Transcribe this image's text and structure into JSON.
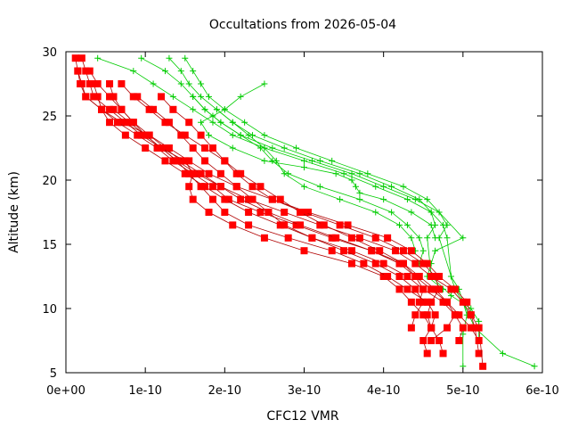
{
  "chart_data": {
    "type": "line",
    "title": "Occultations from 2026-05-04",
    "xlabel": "CFC12 VMR",
    "ylabel": "Altitude (km)",
    "xlim": [
      0,
      6e-10
    ],
    "ylim": [
      5,
      30
    ],
    "x_ticks": [
      {
        "v": 0,
        "label": "0e+00"
      },
      {
        "v": 1e-10,
        "label": "1e-10"
      },
      {
        "v": 2e-10,
        "label": "2e-10"
      },
      {
        "v": 3e-10,
        "label": "3e-10"
      },
      {
        "v": 4e-10,
        "label": "4e-10"
      },
      {
        "v": 5e-10,
        "label": "5e-10"
      },
      {
        "v": 6e-10,
        "label": "6e-10"
      }
    ],
    "y_ticks": [
      {
        "v": 5,
        "label": "5"
      },
      {
        "v": 10,
        "label": "10"
      },
      {
        "v": 15,
        "label": "15"
      },
      {
        "v": 20,
        "label": "20"
      },
      {
        "v": 25,
        "label": "25"
      },
      {
        "v": 30,
        "label": "30"
      }
    ],
    "grid": false,
    "legend": "none",
    "colors": {
      "red": "#ff0000",
      "green": "#00cc00",
      "red_line": "#b00000",
      "green_line": "#00cc00"
    },
    "series": [
      {
        "color": "red",
        "marker": "square",
        "x": [
          1.2e-11,
          1.5e-11,
          1.8e-11,
          2.5e-11,
          4.5e-11,
          7e-11,
          1.05e-10,
          1.3e-10,
          1.55e-10,
          1.8e-10,
          2.15e-10,
          2.6e-10,
          3.05e-10,
          3.55e-10,
          4.05e-10,
          4.35e-10,
          4.55e-10,
          4.7e-10,
          4.9e-10,
          5.05e-10,
          5.1e-10,
          5.15e-10,
          5.2e-10
        ],
        "y": [
          29.5,
          28.5,
          27.5,
          26.5,
          25.5,
          24.5,
          23.5,
          22.5,
          21.5,
          20.5,
          19.5,
          18.5,
          17.5,
          16.5,
          15.5,
          14.5,
          13.5,
          12.5,
          11.5,
          10.5,
          9.5,
          8.5,
          6.5
        ]
      },
      {
        "color": "red",
        "marker": "square",
        "x": [
          2e-11,
          2.5e-11,
          3e-11,
          3.5e-11,
          5.5e-11,
          7.5e-11,
          9.5e-11,
          1.2e-10,
          1.4e-10,
          1.65e-10,
          1.95e-10,
          2.3e-10,
          2.75e-10,
          3.2e-10,
          3.7e-10,
          4.15e-10,
          4.4e-10,
          4.6e-10,
          4.85e-10,
          5e-10,
          5.1e-10,
          5.2e-10,
          5.25e-10
        ],
        "y": [
          29.5,
          28.5,
          27.5,
          26.5,
          25.5,
          24.5,
          23.5,
          22.5,
          21.5,
          20.5,
          19.5,
          18.5,
          17.5,
          16.5,
          15.5,
          14.5,
          13.5,
          12.5,
          11.5,
          10.5,
          9.5,
          8.5,
          5.5
        ]
      },
      {
        "color": "red",
        "marker": "square",
        "x": [
          1.5e-11,
          2e-11,
          2.5e-11,
          4.5e-11,
          6.5e-11,
          9e-11,
          1.15e-10,
          1.35e-10,
          1.6e-10,
          1.85e-10,
          2.05e-10,
          2.45e-10,
          2.9e-10,
          3.35e-10,
          3.85e-10,
          4.25e-10,
          4.45e-10,
          4.65e-10,
          4.8e-10,
          4.95e-10,
          5.1e-10,
          5.2e-10
        ],
        "y": [
          28.5,
          27.5,
          26.5,
          25.5,
          24.5,
          23.5,
          22.5,
          21.5,
          20.5,
          19.5,
          18.5,
          17.5,
          16.5,
          15.5,
          14.5,
          13.5,
          12.5,
          11.5,
          10.5,
          9.5,
          8.5,
          7.5
        ]
      },
      {
        "color": "red",
        "marker": "square",
        "x": [
          3.5e-11,
          4e-11,
          4.5e-11,
          5.5e-11,
          7.5e-11,
          1e-10,
          1.25e-10,
          1.5e-10,
          1.75e-10,
          2e-10,
          2.3e-10,
          2.7e-10,
          3.1e-10,
          3.6e-10,
          4e-10,
          4.3e-10,
          4.5e-10,
          4.75e-10,
          4.9e-10,
          5e-10,
          4.95e-10
        ],
        "y": [
          27.5,
          26.5,
          25.5,
          24.5,
          23.5,
          22.5,
          21.5,
          20.5,
          19.5,
          18.5,
          17.5,
          16.5,
          15.5,
          14.5,
          13.5,
          12.5,
          11.5,
          10.5,
          9.5,
          8.5,
          7.5
        ]
      },
      {
        "color": "red",
        "marker": "square",
        "x": [
          5.5e-11,
          6e-11,
          7e-11,
          8.5e-11,
          1.05e-10,
          1.25e-10,
          1.45e-10,
          1.7e-10,
          1.95e-10,
          2.2e-10,
          2.55e-10,
          2.95e-10,
          3.4e-10,
          3.85e-10,
          4.2e-10,
          4.4e-10,
          4.6e-10,
          4.8e-10,
          4.9e-10,
          4.8e-10,
          4.6e-10
        ],
        "y": [
          27.5,
          26.5,
          25.5,
          24.5,
          23.5,
          22.5,
          21.5,
          20.5,
          19.5,
          18.5,
          17.5,
          16.5,
          15.5,
          14.5,
          13.5,
          12.5,
          11.5,
          10.5,
          9.5,
          8.5,
          7.5
        ]
      },
      {
        "color": "red",
        "marker": "square",
        "x": [
          7e-11,
          8.5e-11,
          1.05e-10,
          1.25e-10,
          1.5e-10,
          1.75e-10,
          2e-10,
          2.15e-10,
          2.35e-10,
          2.6e-10,
          3e-10,
          3.45e-10,
          3.9e-10,
          4.25e-10,
          4.5e-10,
          4.65e-10,
          4.7e-10,
          4.6e-10,
          4.55e-10,
          4.6e-10
        ],
        "y": [
          27.5,
          26.5,
          25.5,
          24.5,
          23.5,
          22.5,
          21.5,
          20.5,
          19.5,
          18.5,
          17.5,
          16.5,
          15.5,
          14.5,
          13.5,
          12.5,
          11.5,
          10.5,
          9.5,
          8.5
        ]
      },
      {
        "color": "red",
        "marker": "square",
        "x": [
          9e-11,
          1.1e-10,
          1.3e-10,
          1.45e-10,
          1.6e-10,
          1.75e-10,
          1.95e-10,
          2.15e-10,
          2.35e-10,
          2.55e-10,
          2.75e-10,
          3.1e-10,
          3.5e-10,
          3.9e-10,
          4.2e-10,
          4.4e-10,
          4.5e-10,
          4.4e-10,
          4.35e-10
        ],
        "y": [
          26.5,
          25.5,
          24.5,
          23.5,
          22.5,
          21.5,
          20.5,
          19.5,
          18.5,
          17.5,
          16.5,
          15.5,
          14.5,
          13.5,
          12.5,
          11.5,
          10.5,
          9.5,
          8.5
        ]
      },
      {
        "color": "red",
        "marker": "square",
        "x": [
          1.2e-10,
          1.35e-10,
          1.55e-10,
          1.7e-10,
          1.85e-10,
          2e-10,
          2.2e-10,
          2.45e-10,
          2.7e-10,
          2.95e-10,
          3.25e-10,
          3.6e-10,
          3.95e-10,
          4.25e-10,
          4.4e-10,
          4.5e-10,
          4.45e-10
        ],
        "y": [
          26.5,
          25.5,
          24.5,
          23.5,
          22.5,
          21.5,
          20.5,
          19.5,
          18.5,
          17.5,
          16.5,
          15.5,
          14.5,
          13.5,
          12.5,
          11.5,
          10.5
        ]
      },
      {
        "color": "red",
        "marker": "square",
        "x": [
          3e-11,
          4e-11,
          5.5e-11,
          7e-11,
          8.5e-11,
          1e-10,
          1.2e-10,
          1.5e-10,
          1.6e-10,
          1.55e-10,
          1.6e-10,
          1.8e-10,
          2.1e-10,
          2.5e-10,
          3e-10,
          3.6e-10,
          4e-10,
          4.2e-10,
          4.35e-10,
          4.5e-10,
          4.6e-10,
          4.7e-10,
          4.75e-10
        ],
        "y": [
          28.5,
          27.5,
          26.5,
          25.5,
          24.5,
          23.5,
          22.5,
          21.5,
          20.5,
          19.5,
          18.5,
          17.5,
          16.5,
          15.5,
          14.5,
          13.5,
          12.5,
          11.5,
          10.5,
          9.5,
          8.5,
          7.5,
          6.5
        ]
      },
      {
        "color": "red",
        "marker": "square",
        "x": [
          6e-11,
          8e-11,
          1e-10,
          1.2e-10,
          1.4e-10,
          1.55e-10,
          1.7e-10,
          1.85e-10,
          2e-10,
          2.3e-10,
          2.8e-10,
          3.35e-10,
          3.75e-10,
          4.05e-10,
          4.3e-10,
          4.55e-10,
          4.65e-10,
          4.6e-10,
          4.5e-10,
          4.55e-10
        ],
        "y": [
          25.5,
          24.5,
          23.5,
          22.5,
          21.5,
          20.5,
          19.5,
          18.5,
          17.5,
          16.5,
          15.5,
          14.5,
          13.5,
          12.5,
          11.5,
          10.5,
          9.5,
          8.5,
          7.5,
          6.5
        ]
      },
      {
        "color": "green",
        "marker": "plus",
        "x": [
          4e-11,
          8.5e-11,
          1.1e-10,
          1.35e-10,
          1.6e-10,
          1.85e-10,
          2.1e-10,
          2.5e-10,
          3e-10,
          3.5e-10,
          3.9e-10,
          4.3e-10,
          4.6e-10,
          4.75e-10,
          4.8e-10,
          4.85e-10,
          4.9e-10,
          5e-10,
          5.15e-10,
          5.5e-10,
          5.9e-10
        ],
        "y": [
          29.5,
          28.5,
          27.5,
          26.5,
          25.5,
          24.5,
          23.5,
          22.5,
          21.5,
          20.5,
          19.5,
          18.5,
          17.5,
          16.5,
          15.5,
          12.5,
          11.5,
          10.5,
          8.5,
          6.5,
          5.5
        ]
      },
      {
        "color": "green",
        "marker": "plus",
        "x": [
          9.5e-11,
          1.25e-10,
          1.45e-10,
          1.6e-10,
          1.75e-10,
          1.95e-10,
          2.2e-10,
          2.6e-10,
          3.1e-10,
          3.6e-10,
          4e-10,
          4.4e-10,
          4.7e-10,
          4.8e-10,
          4.7e-10,
          4.85e-10,
          4.95e-10,
          5e-10,
          5.05e-10,
          5e-10,
          5e-10
        ],
        "y": [
          29.5,
          28.5,
          27.5,
          26.5,
          25.5,
          24.5,
          23.5,
          22.5,
          21.5,
          20.5,
          19.5,
          18.5,
          17.5,
          16.5,
          15.5,
          12.5,
          11.5,
          10.5,
          9.5,
          8.0,
          5.5
        ]
      },
      {
        "color": "green",
        "marker": "plus",
        "x": [
          1.3e-10,
          1.45e-10,
          1.55e-10,
          1.7e-10,
          1.9e-10,
          2.1e-10,
          2.35e-10,
          2.75e-10,
          3.2e-10,
          3.7e-10,
          4.1e-10,
          4.45e-10,
          4.6e-10,
          4.65e-10,
          4.55e-10,
          4.6e-10,
          4.85e-10,
          5.1e-10,
          5.2e-10,
          5.2e-10
        ],
        "y": [
          29.5,
          28.5,
          27.5,
          26.5,
          25.5,
          24.5,
          23.5,
          22.5,
          21.5,
          20.5,
          19.5,
          18.5,
          17.5,
          16.5,
          15.5,
          12.5,
          11.0,
          10.0,
          9.0,
          7.5
        ]
      },
      {
        "color": "green",
        "marker": "plus",
        "x": [
          1.5e-10,
          1.6e-10,
          1.7e-10,
          1.8e-10,
          2e-10,
          2.25e-10,
          2.5e-10,
          2.9e-10,
          3.35e-10,
          3.8e-10,
          4.25e-10,
          4.55e-10,
          5e-10,
          4.65e-10,
          4.6e-10,
          4.55e-10,
          4.75e-10
        ],
        "y": [
          29.5,
          28.5,
          27.5,
          26.5,
          25.5,
          24.5,
          23.5,
          22.5,
          21.5,
          20.5,
          19.5,
          18.5,
          15.5,
          14.5,
          13.5,
          12.5,
          11.5
        ]
      },
      {
        "color": "green",
        "marker": "plus",
        "x": [
          2.5e-10,
          2.2e-10,
          2e-10,
          1.85e-10,
          1.7e-10,
          1.8e-10,
          2.1e-10,
          2.5e-10,
          3e-10,
          3.4e-10,
          3.6e-10,
          3.65e-10,
          3.7e-10,
          4e-10,
          4.35e-10,
          4.6e-10,
          4.65e-10
        ],
        "y": [
          27.5,
          26.5,
          25.5,
          25.0,
          24.5,
          23.5,
          22.5,
          21.5,
          21.0,
          20.5,
          20.0,
          19.5,
          19.0,
          18.5,
          17.5,
          16.5,
          15.5
        ]
      },
      {
        "color": "green",
        "marker": "plus",
        "x": [
          1.6e-10,
          1.75e-10,
          1.95e-10,
          2.2e-10,
          2.45e-10,
          2.6e-10,
          2.8e-10,
          3.2e-10,
          3.7e-10,
          4.1e-10,
          4.3e-10,
          4.45e-10,
          4.5e-10,
          4.45e-10
        ],
        "y": [
          26.5,
          25.5,
          24.5,
          23.5,
          22.5,
          21.5,
          20.5,
          19.5,
          18.5,
          17.5,
          16.5,
          15.5,
          14.5,
          13.5
        ]
      },
      {
        "color": "green",
        "marker": "plus",
        "x": [
          1.9e-10,
          2.1e-10,
          2.3e-10,
          2.5e-10,
          2.65e-10,
          2.75e-10,
          3e-10,
          3.45e-10,
          3.9e-10,
          4.2e-10,
          4.35e-10,
          4.4e-10
        ],
        "y": [
          25.5,
          24.5,
          23.5,
          22.5,
          21.5,
          20.5,
          19.5,
          18.5,
          17.5,
          16.5,
          15.5,
          14.5
        ]
      }
    ]
  }
}
